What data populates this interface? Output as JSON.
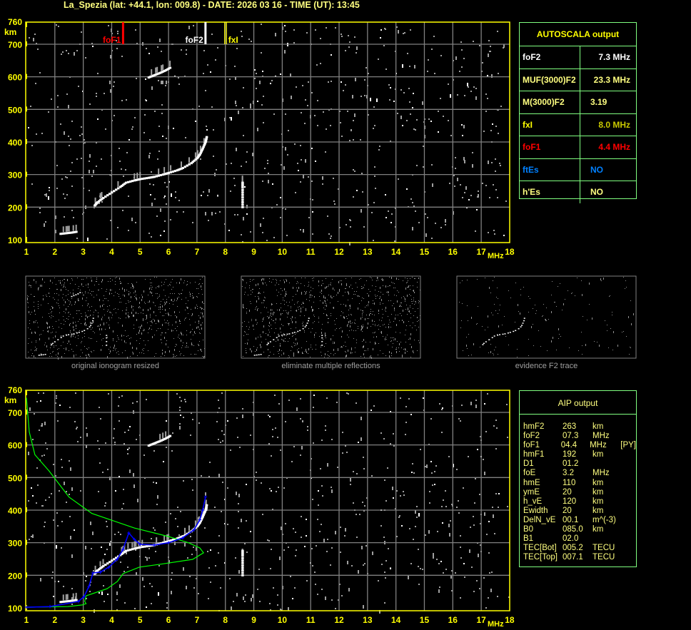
{
  "header": {
    "title": "La_Spezia (lat: +44.1, lon: 009.8) - DATE: 2026 03 16 - TIME (UT): 13:45"
  },
  "colors": {
    "axis": "#ffff00",
    "grid": "#808080",
    "noise": "#a0a0a0",
    "trace": "#ffffff",
    "foF1": "#ff0000",
    "foF2": "#ffffff",
    "fxI": "#ffff00",
    "profile": "#00ff00",
    "fit": "#0000ff",
    "table_border": "#80ff80"
  },
  "axes": {
    "y_unit": "km",
    "x_unit": "MHz",
    "y_ticks": [
      "100",
      "200",
      "300",
      "400",
      "500",
      "600",
      "700",
      "760"
    ],
    "x_ticks": [
      "1",
      "2",
      "3",
      "4",
      "5",
      "6",
      "7",
      "8",
      "9",
      "10",
      "11",
      "12",
      "13",
      "14",
      "15",
      "16",
      "17",
      "18"
    ],
    "xlim": [
      1,
      18
    ],
    "ylim": [
      100,
      760
    ]
  },
  "markers": [
    {
      "label": "foF1",
      "freq": 4.4,
      "color": "#ff0000"
    },
    {
      "label": "foF2",
      "freq": 7.3,
      "color": "#ffffff"
    },
    {
      "label": "fxI",
      "freq": 8.0,
      "color": "#ffff00"
    }
  ],
  "chart_data": [
    {
      "type": "scatter",
      "xlabel": "MHz",
      "ylabel": "km",
      "xlim": [
        1,
        18
      ],
      "ylim": [
        100,
        760
      ],
      "grid": true,
      "series": [
        {
          "points": [
            [
              3.4,
              205
            ],
            [
              3.5,
              215
            ],
            [
              3.7,
              228
            ],
            [
              4.0,
              245
            ],
            [
              4.3,
              262
            ],
            [
              4.5,
              275
            ],
            [
              4.8,
              282
            ],
            [
              5.0,
              286
            ],
            [
              5.3,
              290
            ],
            [
              5.5,
              293
            ],
            [
              5.8,
              300
            ],
            [
              6.0,
              305
            ],
            [
              6.3,
              313
            ],
            [
              6.5,
              320
            ],
            [
              6.8,
              335
            ],
            [
              7.0,
              350
            ],
            [
              7.1,
              362
            ],
            [
              7.2,
              380
            ],
            [
              7.3,
              400
            ],
            [
              7.35,
              420
            ]
          ]
        },
        {
          "points": [
            [
              2.2,
              118
            ],
            [
              2.4,
              120
            ],
            [
              2.6,
              122
            ],
            [
              2.8,
              125
            ]
          ]
        },
        {
          "points": [
            [
              5.3,
              598
            ],
            [
              5.5,
              605
            ],
            [
              5.7,
              612
            ],
            [
              5.9,
              620
            ],
            [
              6.1,
              630
            ]
          ]
        },
        {
          "points": [
            [
              8.6,
              200
            ],
            [
              8.6,
              230
            ],
            [
              8.6,
              260
            ],
            [
              8.6,
              280
            ]
          ]
        }
      ]
    },
    {
      "type": "line",
      "xlabel": "MHz",
      "ylabel": "km",
      "xlim": [
        1,
        18
      ],
      "ylim": [
        100,
        760
      ],
      "grid": true,
      "series": [
        {
          "color": "#00ff00",
          "points": [
            [
              1,
              745
            ],
            [
              1.1,
              640
            ],
            [
              1.3,
              570
            ],
            [
              1.8,
              520
            ],
            [
              2.5,
              440
            ],
            [
              3.3,
              390
            ],
            [
              4.8,
              345
            ],
            [
              6.0,
              319
            ],
            [
              6.7,
              300
            ],
            [
              7.1,
              284
            ],
            [
              7.23,
              269
            ],
            [
              6.85,
              249
            ],
            [
              5.8,
              235
            ],
            [
              4.97,
              225
            ],
            [
              4.4,
              205
            ],
            [
              4.2,
              181
            ],
            [
              3.84,
              159
            ],
            [
              3.1,
              137
            ],
            [
              3.05,
              120
            ],
            [
              3.1,
              113
            ],
            [
              2.96,
              109
            ],
            [
              2.46,
              104
            ],
            [
              1,
              102
            ]
          ]
        },
        {
          "color": "#0000ff",
          "points": [
            [
              1,
              102
            ],
            [
              1.83,
              104
            ],
            [
              2.83,
              120
            ],
            [
              3.03,
              135
            ],
            [
              3.2,
              166
            ],
            [
              3.34,
              207
            ],
            [
              3.6,
              210
            ],
            [
              3.9,
              225
            ],
            [
              4.2,
              250
            ],
            [
              4.4,
              280
            ],
            [
              4.6,
              330
            ],
            [
              4.8,
              310
            ],
            [
              5.0,
              295
            ],
            [
              5.5,
              293
            ],
            [
              6.0,
              300
            ],
            [
              6.5,
              315
            ],
            [
              6.9,
              340
            ],
            [
              7.1,
              370
            ],
            [
              7.2,
              400
            ],
            [
              7.3,
              440
            ]
          ]
        }
      ]
    }
  ],
  "thumbnails": [
    {
      "caption": "original ionogram resized"
    },
    {
      "caption": "eliminate multiple reflections"
    },
    {
      "caption": "evidence F2 trace"
    }
  ],
  "autoscala": {
    "title": "AUTOSCALA output",
    "rows": [
      {
        "key": "foF2",
        "value": "7.3 MHz",
        "key_color": "#ffffff",
        "value_color": "#ffffff"
      },
      {
        "key": "MUF(3000)F2",
        "value": "23.3 MHz",
        "key_color": "#ffff80",
        "value_color": "#ffff80"
      },
      {
        "key": "M(3000)F2",
        "value": "3.19",
        "key_color": "#ffff80",
        "value_color": "#ffff80"
      },
      {
        "key": "fxI",
        "value": "8.0 MHz",
        "key_color": "#ffff00",
        "value_color": "#c8c800"
      },
      {
        "key": "foF1",
        "value": "4.4 MHz",
        "key_color": "#ff0000",
        "value_color": "#ff0000"
      },
      {
        "key": "ftEs",
        "value": "NO",
        "key_color": "#0080ff",
        "value_color": "#0080ff"
      },
      {
        "key": "h'Es",
        "value": "NO",
        "key_color": "#ffff80",
        "value_color": "#ffff80"
      }
    ]
  },
  "aip": {
    "title": "AIP output",
    "rows": [
      [
        "hmF2",
        "263",
        "km",
        ""
      ],
      [
        "foF2",
        "07.3",
        "MHz",
        ""
      ],
      [
        "foF1",
        "04.4",
        "MHz",
        "[PY]"
      ],
      [
        "hmF1",
        "192",
        "km",
        ""
      ],
      [
        "D1",
        "01.2",
        "",
        ""
      ],
      [
        "foE",
        "3.2",
        "MHz",
        ""
      ],
      [
        "hmE",
        "110",
        "km",
        ""
      ],
      [
        "ymE",
        "20",
        "km",
        ""
      ],
      [
        "h_vE",
        "120",
        "km",
        ""
      ],
      [
        "Ewidth",
        "20",
        "km",
        ""
      ],
      [
        "DelN_vE",
        "00.1",
        "m^(-3)",
        ""
      ],
      [
        "B0",
        "085.0",
        "km",
        ""
      ],
      [
        "B1",
        "02.0",
        "",
        ""
      ],
      [
        "TEC[Bot]",
        "005.2",
        "TECU",
        ""
      ],
      [
        "TEC[Top]",
        "007.1",
        "TECU",
        ""
      ]
    ]
  }
}
